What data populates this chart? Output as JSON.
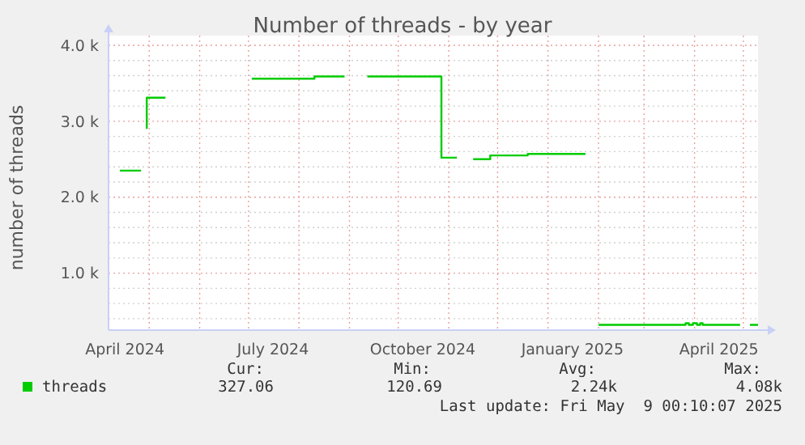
{
  "chart_data": {
    "type": "step",
    "title": "Number of threads - by year",
    "ylabel": "number of threads",
    "x": [
      "2024-04-13",
      "2024-04-26",
      "2024-04-28",
      "2024-04-29",
      "2024-04-30",
      "2024-05-11",
      "2024-05-20",
      "2024-07-03",
      "2024-08-10",
      "2024-08-11",
      "2024-08-29",
      "2024-09-05",
      "2024-09-12",
      "2024-10-27",
      "2024-10-28",
      "2024-11-06",
      "2024-11-10",
      "2024-11-16",
      "2024-11-26",
      "2024-11-27",
      "2024-12-19",
      "2024-12-20",
      "2025-01-24",
      "2025-01-28",
      "2025-02-01",
      "2025-03-26",
      "2025-03-27",
      "2025-03-30",
      "2025-04-01",
      "2025-04-04",
      "2025-04-05",
      "2025-04-07",
      "2025-04-29",
      "2025-05-03",
      "2025-05-05",
      "2025-05-10"
    ],
    "series": [
      {
        "name": "threads",
        "color": "#00cc00",
        "values": [
          2350,
          2350,
          null,
          2910,
          3310,
          3310,
          null,
          3560,
          3560,
          3590,
          3590,
          null,
          3590,
          3590,
          2520,
          2520,
          null,
          2500,
          2500,
          2550,
          2550,
          2570,
          2570,
          null,
          320,
          320,
          340,
          320,
          340,
          320,
          340,
          320,
          320,
          null,
          320,
          320
        ]
      }
    ],
    "xlim": [
      "2024-04-06",
      "2025-05-10"
    ],
    "xticks": [
      {
        "value": "2024-04-16",
        "label": "April 2024"
      },
      {
        "value": "2024-05-01",
        "label": null
      },
      {
        "value": "2024-06-01",
        "label": null
      },
      {
        "value": "2024-07-01",
        "label": null
      },
      {
        "value": "2024-07-16",
        "label": "July 2024"
      },
      {
        "value": "2024-08-01",
        "label": null
      },
      {
        "value": "2024-09-01",
        "label": null
      },
      {
        "value": "2024-10-01",
        "label": null
      },
      {
        "value": "2024-10-16",
        "label": "October 2024"
      },
      {
        "value": "2024-11-01",
        "label": null
      },
      {
        "value": "2024-12-01",
        "label": null
      },
      {
        "value": "2025-01-01",
        "label": null
      },
      {
        "value": "2025-01-16",
        "label": "January 2025"
      },
      {
        "value": "2025-02-01",
        "label": null
      },
      {
        "value": "2025-03-01",
        "label": null
      },
      {
        "value": "2025-04-01",
        "label": null
      },
      {
        "value": "2025-04-16",
        "label": "April 2025"
      },
      {
        "value": "2025-05-01",
        "label": null
      }
    ],
    "ylim": [
      250,
      4000
    ],
    "yticks": [
      {
        "value": 400,
        "label": null
      },
      {
        "value": 600,
        "label": null
      },
      {
        "value": 800,
        "label": null
      },
      {
        "value": 1000,
        "label": "1.0 k"
      },
      {
        "value": 1200,
        "label": null
      },
      {
        "value": 1400,
        "label": null
      },
      {
        "value": 1600,
        "label": null
      },
      {
        "value": 1800,
        "label": null
      },
      {
        "value": 2000,
        "label": "2.0 k"
      },
      {
        "value": 2200,
        "label": null
      },
      {
        "value": 2400,
        "label": null
      },
      {
        "value": 2600,
        "label": null
      },
      {
        "value": 2800,
        "label": null
      },
      {
        "value": 3000,
        "label": "3.0 k"
      },
      {
        "value": 3200,
        "label": null
      },
      {
        "value": 3400,
        "label": null
      },
      {
        "value": 3600,
        "label": null
      },
      {
        "value": 3800,
        "label": null
      },
      {
        "value": 4000,
        "label": "4.0 k"
      }
    ],
    "grid": true,
    "legend": "bottom",
    "annotations": [
      "Cur:",
      "Min:",
      "Avg:",
      "Max:",
      "327.06",
      "120.69",
      "2.24k",
      "4.08k",
      "Last update: Fri May  9 00:10:07 2025"
    ]
  }
}
